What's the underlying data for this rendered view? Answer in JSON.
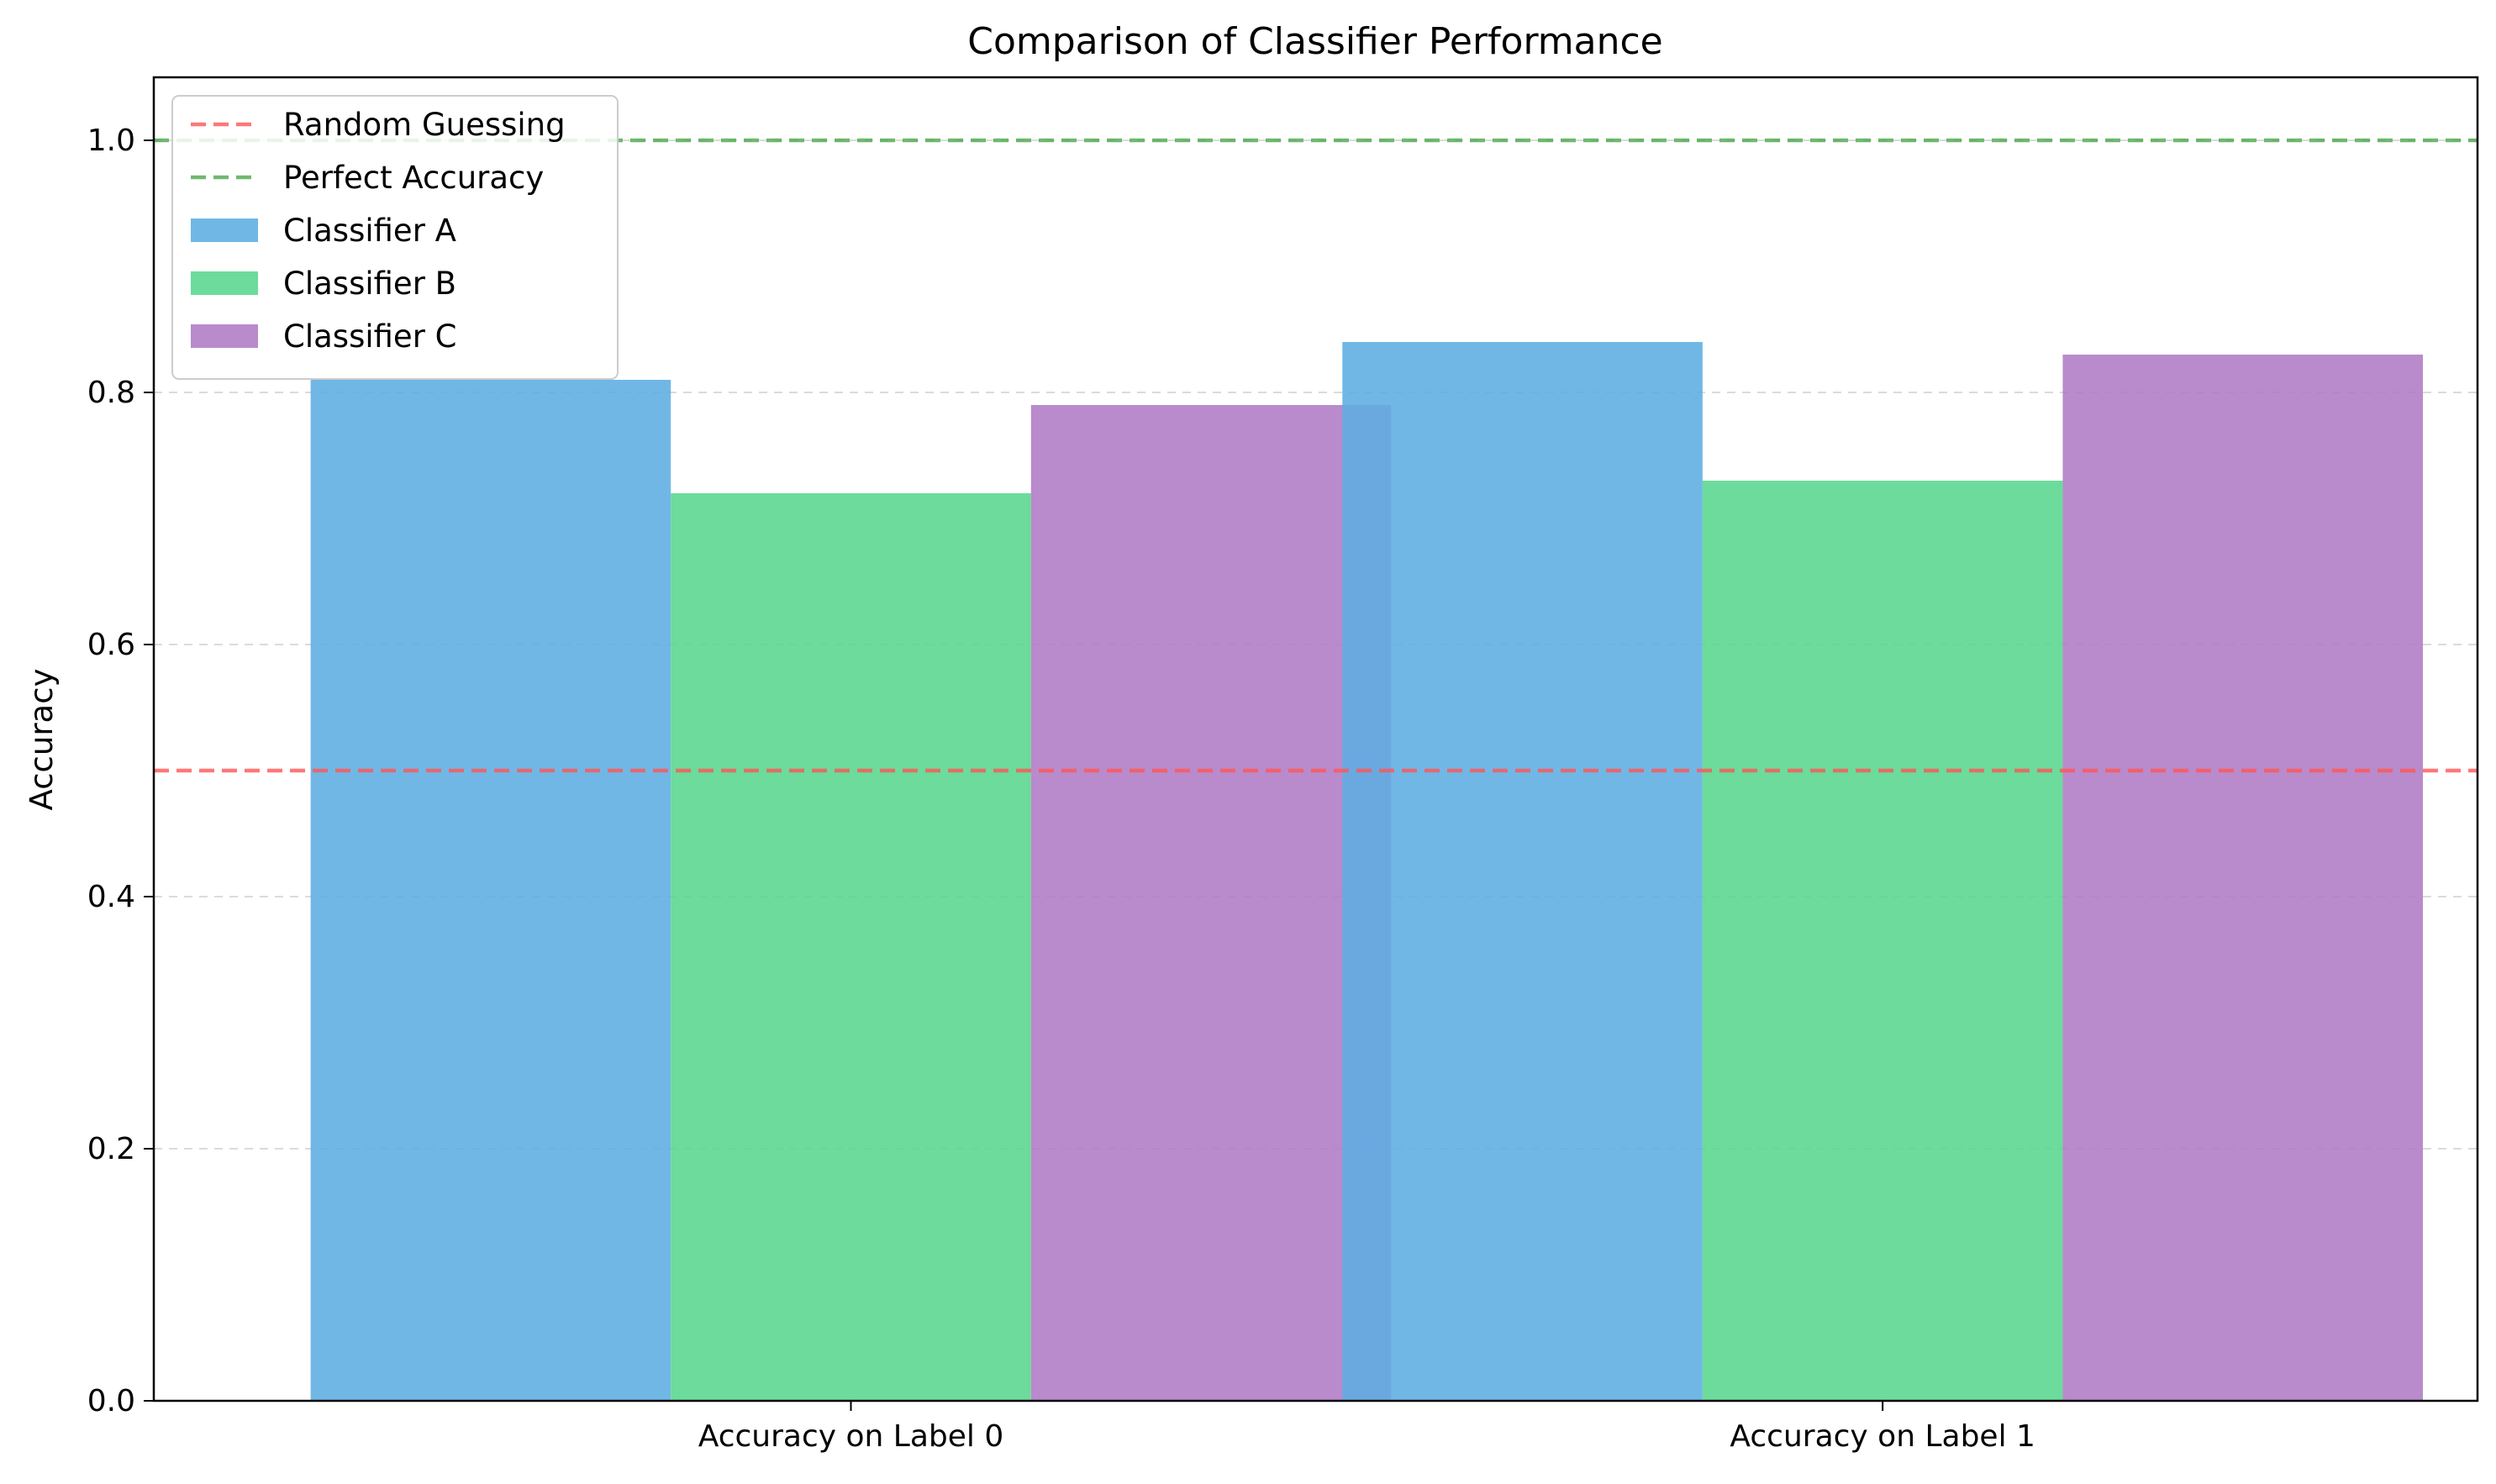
{
  "chart_data": {
    "type": "bar",
    "title": "Comparison of Classifier Performance",
    "xlabel": "",
    "ylabel": "Accuracy",
    "categories": [
      "Accuracy on Label 0",
      "Accuracy on Label 1"
    ],
    "series": [
      {
        "name": "Classifier A",
        "values": [
          0.81,
          0.84
        ],
        "color": "#5DADE2"
      },
      {
        "name": "Classifier B",
        "values": [
          0.72,
          0.73
        ],
        "color": "#58D68D"
      },
      {
        "name": "Classifier C",
        "values": [
          0.79,
          0.83
        ],
        "color": "#AF7AC5"
      }
    ],
    "bar_alpha": 0.88,
    "reference_lines": [
      {
        "name": "Random Guessing",
        "y": 0.5,
        "color": "#FF5555",
        "style": "dashed",
        "alpha": 0.8
      },
      {
        "name": "Perfect Accuracy",
        "y": 1.0,
        "color": "#4CA64C",
        "style": "dashed",
        "alpha": 0.8
      }
    ],
    "ylim": [
      0,
      1.05
    ],
    "yticks": [
      "0.0",
      "0.2",
      "0.4",
      "0.6",
      "0.8",
      "1.0"
    ],
    "grid": "y-dashed",
    "legend": "top-left"
  }
}
